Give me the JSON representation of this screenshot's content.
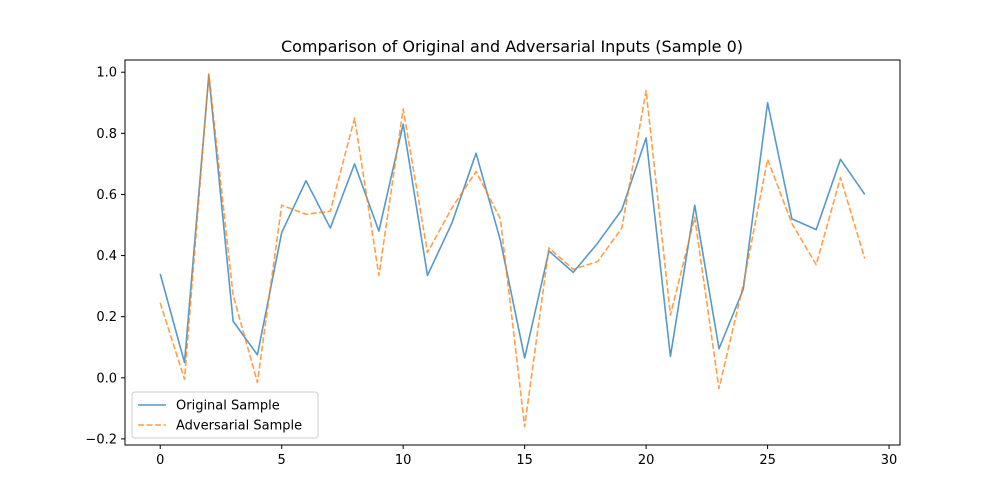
{
  "chart_data": {
    "type": "line",
    "title": "Comparison of Original and Adversarial Inputs (Sample 0)",
    "xlabel": "",
    "ylabel": "",
    "xlim": [
      -1.45,
      30.45
    ],
    "ylim": [
      -0.22,
      1.04
    ],
    "xticks": [
      0,
      5,
      10,
      15,
      20,
      25,
      30
    ],
    "yticks": [
      -0.2,
      0.0,
      0.2,
      0.4,
      0.6,
      0.8,
      1.0
    ],
    "xtick_labels": [
      "0",
      "5",
      "10",
      "15",
      "20",
      "25",
      "30"
    ],
    "ytick_labels": [
      "−0.2",
      "0.0",
      "0.2",
      "0.4",
      "0.6",
      "0.8",
      "1.0"
    ],
    "grid": false,
    "legend_position": "lower-left",
    "x": [
      0,
      1,
      2,
      3,
      4,
      5,
      6,
      7,
      8,
      9,
      10,
      11,
      12,
      13,
      14,
      15,
      16,
      17,
      18,
      19,
      20,
      21,
      22,
      23,
      24,
      25,
      26,
      27,
      28,
      29
    ],
    "series": [
      {
        "name": "Original Sample",
        "color": "#1f77b4",
        "style": "solid",
        "values": [
          0.34,
          0.05,
          0.99,
          0.185,
          0.075,
          0.475,
          0.645,
          0.49,
          0.7,
          0.48,
          0.83,
          0.335,
          0.505,
          0.735,
          0.45,
          0.065,
          0.415,
          0.345,
          0.44,
          0.55,
          0.785,
          0.07,
          0.565,
          0.095,
          0.29,
          0.9,
          0.52,
          0.485,
          0.715,
          0.6
        ]
      },
      {
        "name": "Adversarial Sample",
        "color": "#ff7f0e",
        "style": "dashed",
        "values": [
          0.245,
          -0.005,
          0.995,
          0.27,
          -0.015,
          0.565,
          0.535,
          0.545,
          0.85,
          0.335,
          0.88,
          0.41,
          0.555,
          0.675,
          0.52,
          -0.16,
          0.425,
          0.355,
          0.38,
          0.49,
          0.94,
          0.205,
          0.525,
          -0.035,
          0.305,
          0.715,
          0.505,
          0.37,
          0.655,
          0.39
        ]
      }
    ]
  }
}
